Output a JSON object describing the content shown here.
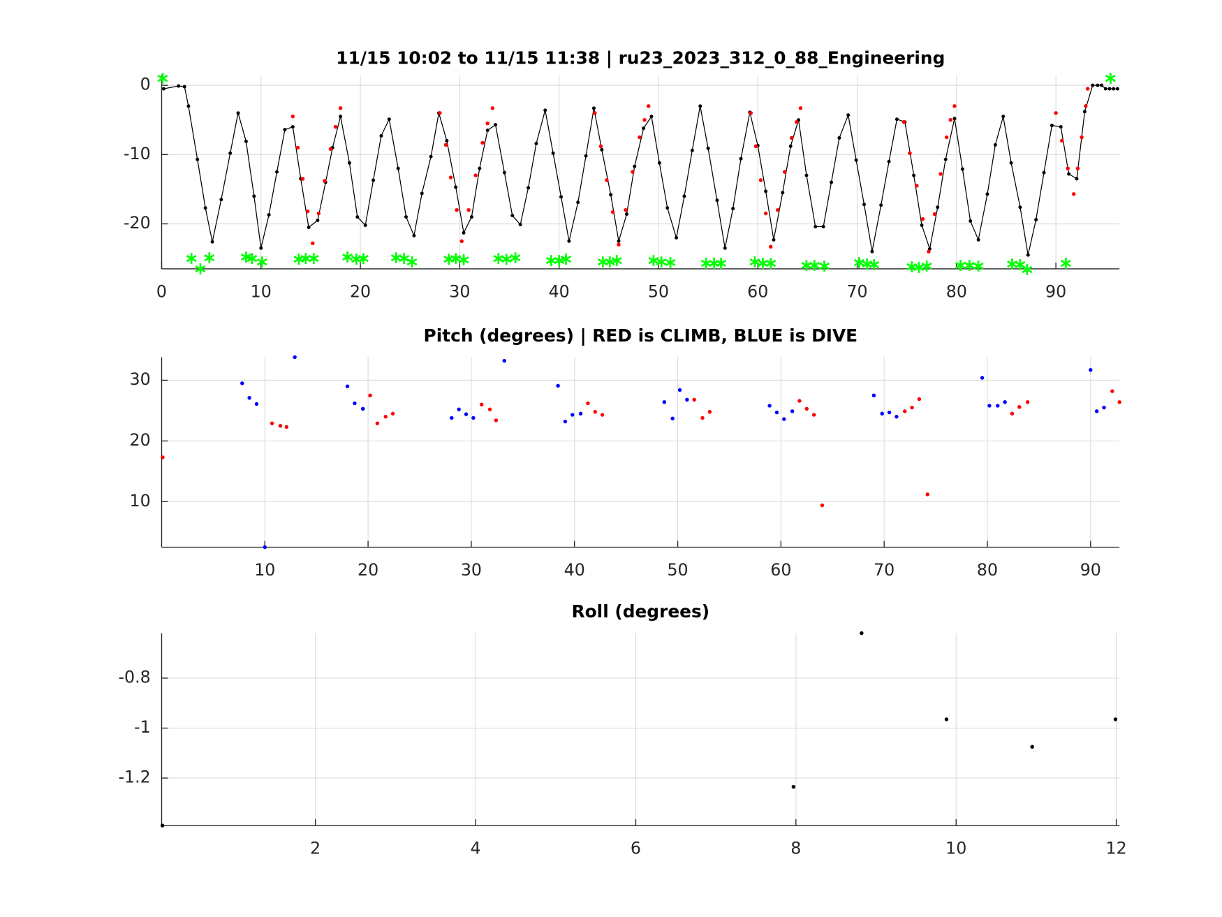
{
  "chart_data": [
    {
      "type": "line",
      "title": "11/15 10:02 to 11/15 11:38 | ru23_2023_312_0_88_Engineering",
      "xlim": [
        0,
        96.4
      ],
      "ylim": [
        -26.5,
        1.5
      ],
      "xticks": [
        0,
        10,
        20,
        30,
        40,
        50,
        60,
        70,
        80,
        90
      ],
      "yticks": [
        -20,
        -10,
        0
      ],
      "grid": true,
      "series": [
        {
          "style": "line",
          "color": "#000000",
          "x": [
            0.2,
            1.7,
            2.3,
            2.7,
            3.6,
            4.4,
            5.1,
            6,
            6.9,
            7.7,
            8.5,
            9.3,
            10,
            10.8,
            11.6,
            12.4,
            13.2,
            14,
            14.8,
            15.7,
            16.5,
            17.2,
            18,
            18.9,
            19.7,
            20.5,
            21.3,
            22.1,
            22.9,
            23.8,
            24.6,
            25.4,
            26.2,
            27.1,
            27.9,
            28.7,
            29.6,
            30.4,
            31.2,
            32,
            32.8,
            33.6,
            34.5,
            35.3,
            36.1,
            36.9,
            37.7,
            38.6,
            39.4,
            40.2,
            41,
            41.9,
            42.7,
            43.5,
            44.3,
            45.2,
            46,
            46.8,
            47.6,
            48.5,
            49.3,
            50.1,
            50.9,
            51.8,
            52.6,
            53.4,
            54.2,
            55,
            55.9,
            56.7,
            57.5,
            58.3,
            59.2,
            60,
            60.8,
            61.6,
            62.5,
            63.3,
            64.1,
            64.9,
            65.8,
            66.6,
            67.4,
            68.2,
            69.1,
            69.9,
            70.7,
            71.5,
            72.4,
            73.2,
            74,
            74.8,
            75.7,
            76.5,
            77.3,
            78.1,
            78.9,
            79.8,
            80.6,
            81.4,
            82.2,
            83.1,
            83.9,
            84.7,
            85.5,
            86.4,
            87.2,
            88,
            88.8,
            89.6,
            90.5,
            91.3,
            92.1,
            92.9,
            93.7,
            94.2,
            94.6,
            95,
            95.4,
            95.8,
            96.2
          ],
          "values": [
            -0.5,
            -0.1,
            -0.2,
            -3,
            -10.7,
            -17.7,
            -22.6,
            -16.5,
            -9.8,
            -4,
            -8.1,
            -16,
            -23.5,
            -18.7,
            -12.5,
            -6.4,
            -6,
            -13.5,
            -20.5,
            -19.5,
            -14,
            -9,
            -4.5,
            -11.2,
            -19,
            -20.2,
            -13.7,
            -7.3,
            -4.9,
            -12,
            -19,
            -21.7,
            -15.6,
            -10.3,
            -4,
            -8,
            -14.7,
            -21.3,
            -19,
            -12,
            -6.5,
            -5.7,
            -12.6,
            -18.8,
            -20.1,
            -14.8,
            -8.4,
            -3.6,
            -9.8,
            -16.1,
            -22.5,
            -16.9,
            -10.2,
            -3.3,
            -9.3,
            -15.8,
            -22.5,
            -18.6,
            -11.7,
            -6.2,
            -4.5,
            -11.2,
            -17.7,
            -22,
            -16,
            -9.4,
            -3,
            -9.1,
            -16.6,
            -23.5,
            -17.8,
            -10.6,
            -3.9,
            -8.7,
            -15.3,
            -22.3,
            -15.5,
            -8.8,
            -5,
            -13,
            -20.4,
            -20.4,
            -14,
            -7.6,
            -4.3,
            -10.8,
            -17.2,
            -24,
            -17.3,
            -11,
            -4.9,
            -5.3,
            -13,
            -20.2,
            -23.6,
            -17.6,
            -10.7,
            -4.8,
            -12.1,
            -19.6,
            -22.3,
            -15.7,
            -8.6,
            -4.5,
            -11.2,
            -17.6,
            -24.5,
            -19.4,
            -12.6,
            -5.8,
            -6,
            -12.8,
            -13.5,
            -3.8,
            0,
            0,
            0,
            -0.5,
            -0.5,
            -0.5,
            -0.5
          ]
        },
        {
          "style": "dots",
          "color": "#ff0000",
          "x": [
            13.2,
            13.7,
            14.2,
            14.7,
            15.2,
            15.8,
            16.4,
            17,
            17.5,
            18,
            28,
            28.6,
            29.1,
            29.7,
            30.2,
            30.9,
            31.6,
            32.3,
            32.8,
            33.3,
            43.6,
            44.2,
            44.8,
            45.4,
            46,
            46.7,
            47.4,
            48.1,
            48.6,
            49,
            59.3,
            59.8,
            60.3,
            60.8,
            61.3,
            62,
            62.7,
            63.4,
            63.9,
            64.3,
            74.7,
            75.3,
            76,
            76.6,
            77.2,
            77.8,
            78.4,
            79,
            79.4,
            79.8,
            90,
            90.6,
            91.2,
            91.8,
            92.2,
            92.6,
            93,
            93.2
          ],
          "values": [
            -4.5,
            -9,
            -13.5,
            -18.2,
            -22.8,
            -18.5,
            -13.8,
            -9.2,
            -6,
            -3.3,
            -4,
            -8.6,
            -13.3,
            -18,
            -22.5,
            -18,
            -13,
            -8.3,
            -5.5,
            -3.3,
            -4,
            -8.8,
            -13.7,
            -18.3,
            -23,
            -18,
            -12.5,
            -7.5,
            -5,
            -3,
            -4,
            -8.8,
            -13.7,
            -18.5,
            -23.3,
            -18,
            -12.5,
            -7.6,
            -5.3,
            -3.3,
            -5.3,
            -9.8,
            -14.5,
            -19.3,
            -24,
            -18.6,
            -12.8,
            -7.5,
            -5,
            -3,
            -4,
            -8,
            -12,
            -15.7,
            -12,
            -7.5,
            -3,
            -0.5
          ]
        },
        {
          "style": "asterisk",
          "color": "#00ff00",
          "x": [
            0.1,
            3,
            3.9,
            4.8,
            8.5,
            9.1,
            10.1,
            13.8,
            14.5,
            15.3,
            18.7,
            19.6,
            20.3,
            23.6,
            24.4,
            25.2,
            28.9,
            29.6,
            30.4,
            33.9,
            34.7,
            35.6,
            39.2,
            40,
            40.7,
            44.4,
            45.1,
            45.8,
            49.5,
            50.3,
            51.2,
            54.8,
            55.6,
            56.3,
            59.7,
            60.5,
            61.3,
            64.9,
            65.7,
            66.7,
            70.2,
            71,
            71.7,
            75.5,
            76.2,
            77,
            80.4,
            81.3,
            82.2,
            85.6,
            86.4,
            87.1,
            91,
            95.5
          ],
          "values": [
            1,
            -25,
            -26.5,
            -24.9,
            -24.8,
            -25,
            -25.5,
            -25.1,
            -25,
            -25,
            -24.8,
            -25.1,
            -25,
            -24.9,
            -25,
            -25.5,
            -25.1,
            -25,
            -25.2,
            -25,
            -25.1,
            -24.9,
            -25.3,
            -25.3,
            -25.1,
            -25.5,
            -25.5,
            -25.3,
            -25.3,
            -25.5,
            -25.6,
            -25.7,
            -25.7,
            -25.7,
            -25.5,
            -25.7,
            -25.7,
            -26,
            -26,
            -26.1,
            -25.6,
            -25.8,
            -25.9,
            -26.2,
            -26.3,
            -26.1,
            -26,
            -26,
            -26.1,
            -25.8,
            -25.9,
            -26.6,
            -25.7,
            1
          ]
        }
      ]
    },
    {
      "type": "scatter",
      "title": "Pitch (degrees) | RED is CLIMB, BLUE is DIVE",
      "xlim": [
        0,
        92.8
      ],
      "ylim": [
        2.5,
        33.8
      ],
      "xticks": [
        10,
        20,
        30,
        40,
        50,
        60,
        70,
        80,
        90
      ],
      "yticks": [
        10,
        20,
        30
      ],
      "grid": true,
      "series": [
        {
          "style": "dots",
          "color": "#0000ff",
          "x": [
            7.8,
            8.5,
            9.2,
            10,
            12.9,
            18,
            18.7,
            19.5,
            28.1,
            28.8,
            29.5,
            30.2,
            33.2,
            38.4,
            39.1,
            39.8,
            40.6,
            48.7,
            49.5,
            50.2,
            50.9,
            58.9,
            59.6,
            60.3,
            61.1,
            69,
            69.8,
            70.5,
            71.2,
            79.5,
            80.2,
            81,
            81.7,
            90,
            90.6,
            91.3
          ],
          "values": [
            29.5,
            27.1,
            26.1,
            2.5,
            33.8,
            29,
            26.2,
            25.3,
            23.8,
            25.2,
            24.4,
            23.8,
            33.2,
            29.1,
            23.2,
            24.3,
            24.5,
            26.4,
            23.7,
            28.4,
            26.8,
            25.8,
            24.7,
            23.6,
            24.9,
            27.5,
            24.5,
            24.7,
            24,
            30.4,
            25.8,
            25.8,
            26.4,
            31.7,
            24.9,
            25.5
          ]
        },
        {
          "style": "dots",
          "color": "#ff0000",
          "x": [
            0.1,
            10.7,
            11.5,
            12.1,
            20.2,
            20.9,
            21.7,
            22.4,
            31,
            31.8,
            32.4,
            41.3,
            42,
            42.7,
            51.6,
            52.4,
            53.1,
            61.8,
            62.5,
            63.2,
            64,
            72,
            72.7,
            73.4,
            74.2,
            82.4,
            83.1,
            83.9,
            92.1,
            92.8
          ],
          "values": [
            17.3,
            22.9,
            22.5,
            22.3,
            27.5,
            22.9,
            24,
            24.5,
            26,
            25.2,
            23.4,
            26.2,
            24.8,
            24.3,
            26.8,
            23.8,
            24.8,
            26.6,
            25.3,
            24.3,
            9.4,
            24.9,
            25.5,
            26.9,
            11.2,
            24.5,
            25.6,
            26.4,
            28.2,
            26.4
          ]
        }
      ]
    },
    {
      "type": "scatter",
      "title": "Roll (degrees)",
      "xlim": [
        0.08,
        12.04
      ],
      "ylim": [
        -1.39,
        -0.62
      ],
      "xticks": [
        2,
        4,
        6,
        8,
        10,
        12
      ],
      "yticks": [
        -1.2,
        -1,
        -0.8
      ],
      "grid": true,
      "series": [
        {
          "style": "dots",
          "color": "#000000",
          "x": [
            0.09,
            7.97,
            8.82,
            9.88,
            10.95,
            11.99
          ],
          "values": [
            -1.39,
            -1.235,
            -0.62,
            -0.965,
            -1.075,
            -0.965
          ]
        }
      ]
    }
  ]
}
